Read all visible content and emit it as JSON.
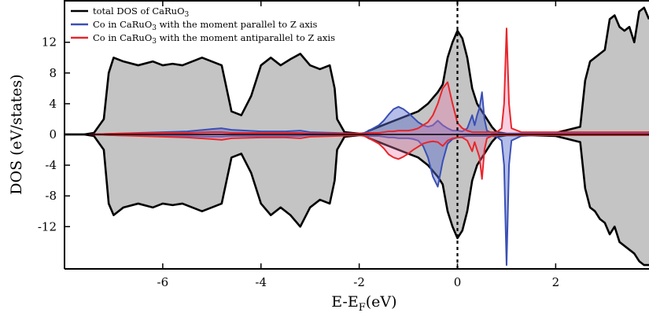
{
  "chart_data": {
    "type": "line",
    "title": "",
    "xlabel": "E-E_F(eV)",
    "xlabel_main": "E-E",
    "xlabel_sub": "F",
    "xlabel_unit": "(eV)",
    "ylabel": "DOS (eV/states)",
    "xlim": [
      -8.0,
      3.9
    ],
    "ylim": [
      -17.5,
      17.5
    ],
    "x_ticks": [
      -6,
      -4,
      -2,
      0,
      2
    ],
    "x_tick_labels": [
      "-6",
      "-4",
      "-2",
      "0",
      "2"
    ],
    "y_ticks": [
      12,
      8,
      4,
      0,
      -4,
      -8,
      -12
    ],
    "y_tick_labels": [
      "12",
      "8",
      "4",
      "0",
      "-4",
      "-8",
      "-12"
    ],
    "grid": false,
    "legend_position": "top-left",
    "fermi_level_line": {
      "x": 0,
      "style": "dotted"
    },
    "legend": [
      {
        "series": "total",
        "text": "total DOS of CaRuO",
        "sub": "3",
        "suffix": "",
        "color": "#000000"
      },
      {
        "series": "co_par",
        "text": "Co in CaRuO",
        "sub": "3",
        "suffix": " with the moment parallel to Z axis",
        "color": "#3a4fb5"
      },
      {
        "series": "co_anti",
        "text": "Co in CaRuO",
        "sub": "3",
        "suffix": " with the moment antiparallel to Z axis",
        "color": "#e8262b"
      }
    ],
    "series": [
      {
        "id": "total",
        "name": "total DOS of CaRuO3",
        "color": "#000000",
        "fill": "#c4c4c4",
        "up": {
          "x": [
            -8.0,
            -7.6,
            -7.4,
            -7.2,
            -7.1,
            -7.0,
            -6.8,
            -6.5,
            -6.2,
            -6.0,
            -5.8,
            -5.6,
            -5.4,
            -5.2,
            -5.0,
            -4.8,
            -4.6,
            -4.4,
            -4.2,
            -4.0,
            -3.8,
            -3.6,
            -3.4,
            -3.2,
            -3.0,
            -2.8,
            -2.6,
            -2.5,
            -2.45,
            -2.3,
            -2.0,
            -1.9,
            -1.8,
            -1.6,
            -1.4,
            -1.2,
            -1.0,
            -0.8,
            -0.6,
            -0.4,
            -0.3,
            -0.2,
            -0.1,
            0.0,
            0.1,
            0.2,
            0.3,
            0.4,
            0.5,
            0.6,
            0.7,
            0.8,
            1.0,
            1.2,
            1.5,
            2.0,
            2.5,
            2.6,
            2.7,
            2.8,
            2.9,
            3.0,
            3.1,
            3.2,
            3.3,
            3.4,
            3.5,
            3.6,
            3.7,
            3.8,
            3.9
          ],
          "y": [
            0,
            0,
            0.2,
            2.0,
            8.0,
            10.0,
            9.5,
            9.0,
            9.5,
            9.0,
            9.2,
            9.0,
            9.5,
            10.0,
            9.5,
            9.0,
            3.0,
            2.5,
            5.0,
            9.0,
            10.0,
            9.0,
            9.8,
            10.5,
            9.0,
            8.5,
            9.0,
            6.0,
            2.0,
            0.3,
            0.1,
            0.1,
            0.5,
            1.0,
            1.5,
            2.0,
            2.5,
            3.0,
            4.0,
            5.5,
            6.5,
            10.0,
            12.0,
            13.5,
            12.5,
            10.0,
            6.0,
            4.0,
            3.0,
            2.0,
            1.0,
            0.3,
            0.1,
            0.1,
            0.1,
            0.2,
            1.0,
            7.0,
            9.5,
            10.0,
            10.5,
            11.0,
            15.0,
            15.5,
            14.0,
            13.5,
            14.0,
            12.0,
            16.0,
            16.5,
            15.0
          ]
        },
        "down": {
          "x": [
            -8.0,
            -7.6,
            -7.4,
            -7.2,
            -7.1,
            -7.0,
            -6.8,
            -6.5,
            -6.2,
            -6.0,
            -5.8,
            -5.6,
            -5.4,
            -5.2,
            -5.0,
            -4.8,
            -4.6,
            -4.4,
            -4.2,
            -4.0,
            -3.8,
            -3.6,
            -3.4,
            -3.2,
            -3.0,
            -2.8,
            -2.6,
            -2.5,
            -2.45,
            -2.3,
            -2.0,
            -1.9,
            -1.8,
            -1.6,
            -1.4,
            -1.2,
            -1.0,
            -0.8,
            -0.6,
            -0.4,
            -0.3,
            -0.2,
            -0.1,
            0.0,
            0.1,
            0.2,
            0.3,
            0.4,
            0.5,
            0.6,
            0.7,
            0.8,
            1.0,
            1.2,
            1.5,
            2.0,
            2.5,
            2.6,
            2.7,
            2.8,
            2.9,
            3.0,
            3.1,
            3.2,
            3.3,
            3.4,
            3.5,
            3.6,
            3.7,
            3.8,
            3.9
          ],
          "y": [
            0,
            0,
            -0.2,
            -2.0,
            -9.0,
            -10.5,
            -9.5,
            -9.0,
            -9.5,
            -9.0,
            -9.2,
            -9.0,
            -9.5,
            -10.0,
            -9.5,
            -9.0,
            -3.0,
            -2.5,
            -5.0,
            -9.0,
            -10.5,
            -9.5,
            -10.5,
            -12.0,
            -9.5,
            -8.5,
            -9.0,
            -6.0,
            -2.0,
            -0.3,
            -0.1,
            -0.1,
            -0.5,
            -1.0,
            -1.5,
            -2.0,
            -2.5,
            -3.0,
            -4.0,
            -5.5,
            -6.5,
            -10.0,
            -12.0,
            -13.5,
            -12.5,
            -10.0,
            -6.0,
            -4.0,
            -3.0,
            -2.0,
            -1.0,
            -0.3,
            -0.1,
            -0.1,
            -0.1,
            -0.2,
            -1.0,
            -7.0,
            -9.5,
            -10.0,
            -11.0,
            -11.5,
            -13.0,
            -12.0,
            -14.0,
            -14.5,
            -15.0,
            -15.5,
            -16.5,
            -17.0,
            -17.0
          ]
        }
      },
      {
        "id": "co_par",
        "name": "Co in CaRuO3 with the moment parallel to Z axis",
        "color": "#3a4fb5",
        "fill": "rgba(92,110,205,0.45)",
        "up": {
          "x": [
            -7.5,
            -7.0,
            -6.0,
            -5.5,
            -5.0,
            -4.8,
            -4.6,
            -4.0,
            -3.5,
            -3.2,
            -3.0,
            -2.5,
            -2.0,
            -1.9,
            -1.8,
            -1.6,
            -1.5,
            -1.4,
            -1.3,
            -1.2,
            -1.1,
            -1.0,
            -0.9,
            -0.8,
            -0.7,
            -0.6,
            -0.5,
            -0.4,
            -0.3,
            -0.2,
            -0.1,
            0.0,
            0.1,
            0.2,
            0.3,
            0.35,
            0.4,
            0.45,
            0.5,
            0.55,
            0.6,
            0.7,
            0.8,
            0.9,
            0.95,
            1.0,
            1.05,
            1.1,
            1.3,
            1.6,
            2.0,
            2.6,
            3.0,
            3.5,
            3.9
          ],
          "y": [
            0,
            0.1,
            0.3,
            0.4,
            0.7,
            0.8,
            0.6,
            0.4,
            0.4,
            0.5,
            0.3,
            0.2,
            0.1,
            0.2,
            0.5,
            1.2,
            1.8,
            2.6,
            3.3,
            3.6,
            3.3,
            2.8,
            2.2,
            1.6,
            1.2,
            1.0,
            1.2,
            1.8,
            1.2,
            0.8,
            0.5,
            0.5,
            0.4,
            0.8,
            2.5,
            1.2,
            2.5,
            3.5,
            5.5,
            2.0,
            0.5,
            0.2,
            0.1,
            0.1,
            0.1,
            0.1,
            0.1,
            0.1,
            0.1,
            0.1,
            0.1,
            0.1,
            0.1,
            0.1,
            0.1
          ]
        },
        "down": {
          "x": [
            -7.5,
            -7.0,
            -6.0,
            -5.5,
            -5.0,
            -4.8,
            -4.6,
            -4.0,
            -3.5,
            -3.2,
            -3.0,
            -2.5,
            -2.0,
            -1.9,
            -1.8,
            -1.6,
            -1.5,
            -1.4,
            -1.3,
            -1.2,
            -1.1,
            -1.0,
            -0.9,
            -0.8,
            -0.7,
            -0.6,
            -0.5,
            -0.4,
            -0.3,
            -0.2,
            -0.1,
            0.0,
            0.1,
            0.2,
            0.3,
            0.35,
            0.4,
            0.45,
            0.5,
            0.55,
            0.6,
            0.7,
            0.8,
            0.9,
            0.95,
            1.0,
            1.05,
            1.1,
            1.3,
            1.6,
            2.0,
            2.6,
            3.0,
            3.5,
            3.9
          ],
          "y": [
            0,
            -0.1,
            -0.2,
            -0.2,
            -0.3,
            -0.3,
            -0.2,
            -0.2,
            -0.2,
            -0.2,
            -0.1,
            -0.1,
            -0.1,
            -0.1,
            -0.2,
            -0.2,
            -0.3,
            -0.4,
            -0.4,
            -0.5,
            -0.5,
            -0.5,
            -0.6,
            -0.8,
            -1.5,
            -3.0,
            -5.5,
            -6.8,
            -3.5,
            -1.2,
            -0.6,
            -0.4,
            -0.3,
            -0.2,
            -0.2,
            -0.2,
            -0.2,
            -0.2,
            -0.2,
            -0.2,
            -0.2,
            -0.2,
            -0.3,
            -0.8,
            -4.0,
            -17.0,
            -4.0,
            -0.8,
            -0.2,
            -0.1,
            -0.1,
            -0.1,
            -0.1,
            -0.1,
            -0.1
          ]
        }
      },
      {
        "id": "co_anti",
        "name": "Co in CaRuO3 with the moment antiparallel to Z axis",
        "color": "#e8262b",
        "fill": "rgba(235,120,170,0.35)",
        "up": {
          "x": [
            -7.5,
            -7.0,
            -6.0,
            -5.5,
            -5.0,
            -4.8,
            -4.6,
            -4.0,
            -3.5,
            -3.2,
            -3.0,
            -2.5,
            -2.0,
            -1.9,
            -1.8,
            -1.6,
            -1.5,
            -1.4,
            -1.3,
            -1.2,
            -1.1,
            -1.0,
            -0.9,
            -0.8,
            -0.7,
            -0.6,
            -0.5,
            -0.4,
            -0.3,
            -0.2,
            -0.1,
            0.0,
            0.1,
            0.2,
            0.3,
            0.35,
            0.4,
            0.45,
            0.5,
            0.55,
            0.6,
            0.7,
            0.8,
            0.9,
            0.95,
            1.0,
            1.05,
            1.1,
            1.3,
            1.6,
            2.0,
            2.6,
            3.0,
            3.5,
            3.9
          ],
          "y": [
            0,
            0.1,
            0.2,
            0.2,
            0.3,
            0.3,
            0.2,
            0.2,
            0.2,
            0.2,
            0.1,
            0.1,
            0.1,
            0.1,
            0.2,
            0.2,
            0.3,
            0.4,
            0.4,
            0.5,
            0.5,
            0.5,
            0.6,
            0.8,
            1.2,
            1.6,
            2.5,
            4.0,
            6.0,
            6.8,
            4.0,
            1.5,
            0.8,
            0.5,
            0.3,
            0.3,
            0.3,
            0.3,
            0.3,
            0.3,
            0.3,
            0.3,
            0.3,
            0.8,
            4.0,
            13.8,
            4.0,
            0.8,
            0.3,
            0.3,
            0.3,
            0.3,
            0.3,
            0.3,
            0.3
          ]
        },
        "down": {
          "x": [
            -7.5,
            -7.0,
            -6.0,
            -5.5,
            -5.0,
            -4.8,
            -4.6,
            -4.0,
            -3.5,
            -3.2,
            -3.0,
            -2.5,
            -2.0,
            -1.9,
            -1.8,
            -1.6,
            -1.5,
            -1.4,
            -1.3,
            -1.2,
            -1.1,
            -1.0,
            -0.9,
            -0.8,
            -0.7,
            -0.6,
            -0.5,
            -0.4,
            -0.3,
            -0.2,
            -0.1,
            0.0,
            0.1,
            0.2,
            0.3,
            0.35,
            0.4,
            0.45,
            0.5,
            0.55,
            0.6,
            0.7,
            0.8,
            0.9,
            0.95,
            1.0,
            1.05,
            1.1,
            1.3,
            1.6,
            2.0,
            2.6,
            3.0,
            3.5,
            3.9
          ],
          "y": [
            0,
            -0.1,
            -0.3,
            -0.4,
            -0.6,
            -0.7,
            -0.5,
            -0.4,
            -0.4,
            -0.5,
            -0.3,
            -0.2,
            -0.1,
            -0.2,
            -0.5,
            -1.2,
            -1.8,
            -2.6,
            -3.0,
            -3.2,
            -2.9,
            -2.5,
            -2.0,
            -1.6,
            -1.2,
            -1.0,
            -0.9,
            -1.0,
            -1.5,
            -0.8,
            -0.5,
            -0.4,
            -0.4,
            -0.8,
            -2.2,
            -1.0,
            -2.0,
            -3.0,
            -5.8,
            -2.0,
            -0.5,
            -0.2,
            -0.1,
            -0.1,
            -0.1,
            -0.1,
            -0.1,
            -0.1,
            -0.1,
            -0.1,
            -0.1,
            -0.1,
            -0.1,
            -0.1,
            -0.1
          ]
        }
      }
    ]
  }
}
